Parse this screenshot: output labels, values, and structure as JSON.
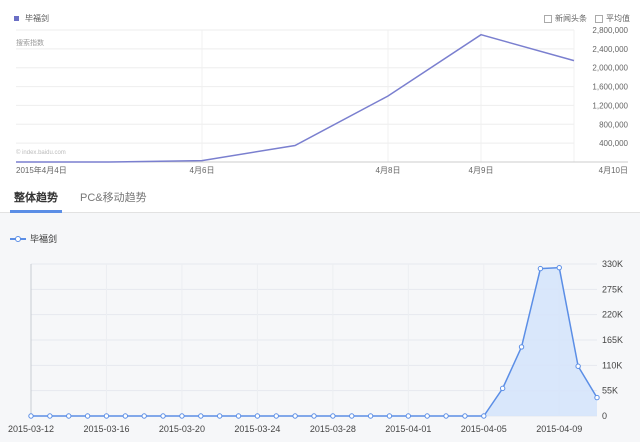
{
  "top_panel": {
    "legend_label": "毕福剑",
    "options": [
      "新闻头条",
      "平均值"
    ],
    "y_title": "搜索指数",
    "watermark": "© index.baidu.com",
    "colors": {
      "line": "#7a7fcf",
      "swatch": "#6b6fc5"
    }
  },
  "tabs": [
    {
      "label": "整体趋势",
      "active": true
    },
    {
      "label": "PC&移动趋势",
      "active": false
    }
  ],
  "bottom_panel": {
    "legend_label": "毕福剑",
    "colors": {
      "line": "#5b8ee6",
      "fill": "#d6e4fb"
    }
  },
  "chart_data": [
    {
      "type": "line",
      "x_tick_labels": [
        "2015年4月4日",
        "4月6日",
        "4月8日",
        "4月9日",
        "4月10日"
      ],
      "x": [
        "4月4日",
        "4月5日",
        "4月6日",
        "4月7日",
        "4月8日",
        "4月9日",
        "4月10日"
      ],
      "series": [
        {
          "name": "毕福剑",
          "values": [
            0,
            0,
            30000,
            350000,
            1400000,
            2700000,
            2150000
          ]
        }
      ],
      "yticks": [
        400000,
        800000,
        1200000,
        1600000,
        2000000,
        2400000,
        2800000
      ],
      "ytick_labels": [
        "400,000",
        "800,000",
        "1,200,000",
        "1,600,000",
        "2,000,000",
        "2,400,000",
        "2,800,000"
      ],
      "ylim": [
        0,
        2800000
      ],
      "grid": true,
      "legend": "top-left"
    },
    {
      "type": "area",
      "x": [
        "2015-03-12",
        "2015-03-13",
        "2015-03-14",
        "2015-03-15",
        "2015-03-16",
        "2015-03-17",
        "2015-03-18",
        "2015-03-19",
        "2015-03-20",
        "2015-03-21",
        "2015-03-22",
        "2015-03-23",
        "2015-03-24",
        "2015-03-25",
        "2015-03-26",
        "2015-03-27",
        "2015-03-28",
        "2015-03-29",
        "2015-03-30",
        "2015-03-31",
        "2015-04-01",
        "2015-04-02",
        "2015-04-03",
        "2015-04-04",
        "2015-04-05",
        "2015-04-06",
        "2015-04-07",
        "2015-04-08",
        "2015-04-09",
        "2015-04-10",
        "2015-04-11"
      ],
      "x_tick_labels": [
        "2015-03-12",
        "2015-03-16",
        "2015-03-20",
        "2015-03-24",
        "2015-03-28",
        "2015-04-01",
        "2015-04-05",
        "2015-04-09"
      ],
      "series": [
        {
          "name": "毕福剑",
          "values": [
            0,
            0,
            0,
            0,
            0,
            0,
            0,
            0,
            0,
            0,
            0,
            0,
            0,
            0,
            0,
            0,
            0,
            0,
            0,
            0,
            0,
            0,
            0,
            0,
            0,
            60000,
            150000,
            320000,
            322000,
            108000,
            40000
          ]
        }
      ],
      "yticks": [
        0,
        55000,
        110000,
        165000,
        220000,
        275000,
        330000
      ],
      "ytick_labels": [
        "0",
        "55K",
        "110K",
        "165K",
        "220K",
        "275K",
        "330K"
      ],
      "ylim": [
        0,
        330000
      ],
      "grid": true,
      "legend": "top-left"
    }
  ]
}
